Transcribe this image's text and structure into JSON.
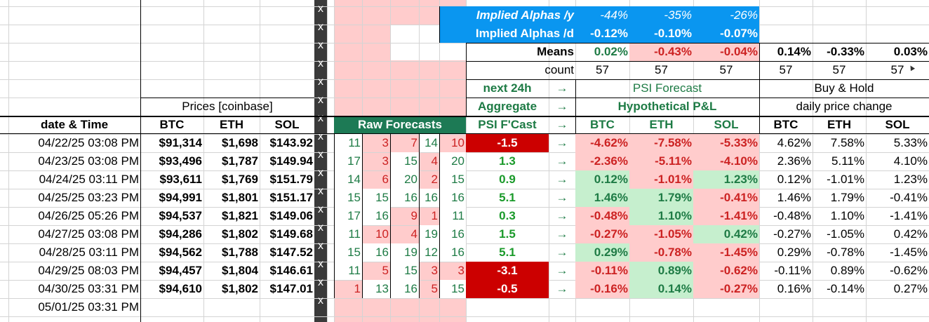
{
  "alphas": {
    "label_y": "Implied Alphas /y",
    "vals_y": [
      "-44%",
      "-35%",
      "-26%"
    ],
    "label_d": "Implied Alphas /d",
    "vals_d": [
      "-0.12%",
      "-0.10%",
      "-0.07%"
    ]
  },
  "means": {
    "label": "Means",
    "pl": [
      "0.02%",
      "-0.43%",
      "-0.04%"
    ],
    "bh": [
      "0.14%",
      "-0.33%",
      "0.03%"
    ]
  },
  "count": {
    "label": "count",
    "pl": [
      "57",
      "57",
      "57"
    ],
    "bh": [
      "57",
      "57",
      "57"
    ]
  },
  "x_marker": "x",
  "headers": {
    "next24h": "next 24h",
    "aggregate": "Aggregate",
    "psi_fcast": "PSI F'Cast",
    "arrow": "→",
    "psi_forecast": "PSI Forecast",
    "hyp_pl": "Hypothetical P&L",
    "buy_hold": "Buy & Hold",
    "daily_change": "daily price change",
    "prices": "Prices [coinbase]",
    "raw_forecasts": "Raw Forecasts",
    "date_time": "date & Time",
    "btc": "BTC",
    "eth": "ETH",
    "sol": "SOL"
  },
  "rows": [
    {
      "date": "04/22/25 03:08 PM",
      "btc": "$91,314",
      "eth": "$1,698",
      "sol": "$143.92",
      "raw": [
        "11",
        "3",
        "7",
        "14",
        "10"
      ],
      "psi": "-1.5",
      "pl": [
        "-4.62%",
        "-7.58%",
        "-5.33%"
      ],
      "bh": [
        "4.62%",
        "7.58%",
        "5.33%"
      ]
    },
    {
      "date": "04/23/25 03:08 PM",
      "btc": "$93,496",
      "eth": "$1,787",
      "sol": "$149.94",
      "raw": [
        "17",
        "3",
        "15",
        "4",
        "20"
      ],
      "psi": "1.3",
      "pl": [
        "-2.36%",
        "-5.11%",
        "-4.10%"
      ],
      "bh": [
        "2.36%",
        "5.11%",
        "4.10%"
      ]
    },
    {
      "date": "04/24/25 03:11 PM",
      "btc": "$93,611",
      "eth": "$1,769",
      "sol": "$151.79",
      "raw": [
        "14",
        "6",
        "20",
        "2",
        "15"
      ],
      "psi": "0.9",
      "pl": [
        "0.12%",
        "-1.01%",
        "1.23%"
      ],
      "bh": [
        "0.12%",
        "-1.01%",
        "1.23%"
      ]
    },
    {
      "date": "04/25/25 03:23 PM",
      "btc": "$94,991",
      "eth": "$1,801",
      "sol": "$151.17",
      "raw": [
        "15",
        "15",
        "16",
        "16",
        "16"
      ],
      "psi": "5.1",
      "pl": [
        "1.46%",
        "1.79%",
        "-0.41%"
      ],
      "bh": [
        "1.46%",
        "1.79%",
        "-0.41%"
      ]
    },
    {
      "date": "04/26/25 05:26 PM",
      "btc": "$94,537",
      "eth": "$1,821",
      "sol": "$149.06",
      "raw": [
        "17",
        "16",
        "9",
        "1",
        "11"
      ],
      "psi": "0.3",
      "pl": [
        "-0.48%",
        "1.10%",
        "-1.41%"
      ],
      "bh": [
        "-0.48%",
        "1.10%",
        "-1.41%"
      ]
    },
    {
      "date": "04/27/25 03:08 PM",
      "btc": "$94,286",
      "eth": "$1,802",
      "sol": "$149.68",
      "raw": [
        "11",
        "10",
        "4",
        "19",
        "16"
      ],
      "psi": "1.5",
      "pl": [
        "-0.27%",
        "-1.05%",
        "0.42%"
      ],
      "bh": [
        "-0.27%",
        "-1.05%",
        "0.42%"
      ]
    },
    {
      "date": "04/28/25 03:11 PM",
      "btc": "$94,562",
      "eth": "$1,788",
      "sol": "$147.52",
      "raw": [
        "15",
        "16",
        "19",
        "12",
        "16"
      ],
      "psi": "5.1",
      "pl": [
        "0.29%",
        "-0.78%",
        "-1.45%"
      ],
      "bh": [
        "0.29%",
        "-0.78%",
        "-1.45%"
      ]
    },
    {
      "date": "04/29/25 08:03 PM",
      "btc": "$94,457",
      "eth": "$1,804",
      "sol": "$146.61",
      "raw": [
        "11",
        "5",
        "15",
        "3",
        "3"
      ],
      "psi": "-3.1",
      "pl": [
        "-0.11%",
        "0.89%",
        "-0.62%"
      ],
      "bh": [
        "-0.11%",
        "0.89%",
        "-0.62%"
      ]
    },
    {
      "date": "04/30/25 03:31 PM",
      "btc": "$94,610",
      "eth": "$1,802",
      "sol": "$147.01",
      "raw": [
        "1",
        "13",
        "16",
        "5",
        "15"
      ],
      "psi": "-0.5",
      "pl": [
        "-0.16%",
        "0.14%",
        "-0.27%"
      ],
      "bh": [
        "0.16%",
        "-0.14%",
        "0.27%"
      ]
    }
  ],
  "last_date": "05/01/25 03:31 PM",
  "colors": {
    "green_text": "#1e7b45",
    "red_text": "#cc2222",
    "pink_bg": "#ffcccc",
    "green_bg": "#c6efce",
    "red_bg": "#cc0000",
    "blue_bg": "#0a96f0",
    "dark_col": "#3a3a3a"
  }
}
